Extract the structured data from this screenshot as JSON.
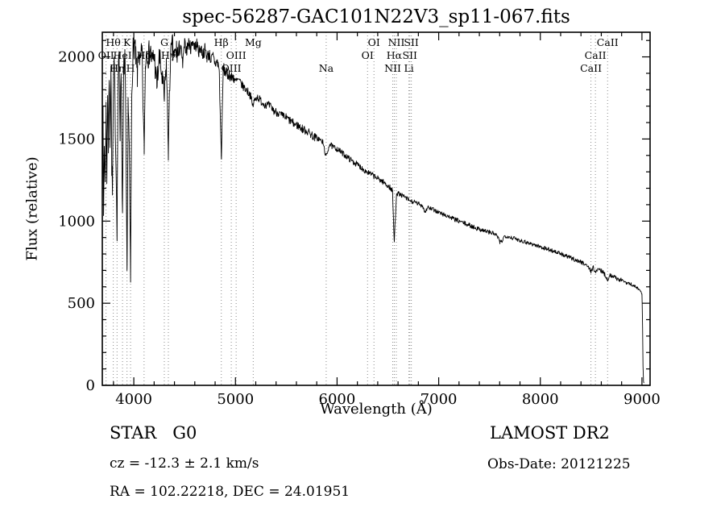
{
  "chart_data": {
    "type": "line",
    "title": "spec-56287-GAC101N22V3_sp11-067.fits",
    "xlabel": "Wavelength (Å)",
    "ylabel": "Flux (relative)",
    "xlim": [
      3690,
      9080
    ],
    "ylim": [
      0,
      2150
    ],
    "xticks": [
      4000,
      5000,
      6000,
      7000,
      8000,
      9000
    ],
    "yticks": [
      0,
      500,
      1000,
      1500,
      2000
    ],
    "x_minor_step": 200,
    "y_minor_step": 100,
    "grid": false,
    "legend": "none",
    "line_color": "#000000",
    "marker_line_color": "#8a8a8a",
    "spectral_lines": [
      {
        "label": "Hθ",
        "wavelength": 3798,
        "row": 1
      },
      {
        "label": "K",
        "wavelength": 3933,
        "row": 1
      },
      {
        "label": "G",
        "wavelength": 4300,
        "row": 1
      },
      {
        "label": "Hβ",
        "wavelength": 4861,
        "row": 1
      },
      {
        "label": "Mg",
        "wavelength": 5175,
        "row": 1
      },
      {
        "label": "OI",
        "wavelength": 6363,
        "row": 1
      },
      {
        "label": "NII",
        "wavelength": 6583,
        "row": 1
      },
      {
        "label": "SII",
        "wavelength": 6731,
        "row": 1
      },
      {
        "label": "CaII",
        "wavelength": 8662,
        "row": 1
      },
      {
        "label": "OII",
        "wavelength": 3727,
        "row": 2
      },
      {
        "label": "HeI",
        "wavelength": 3889,
        "row": 2
      },
      {
        "label": "Hδ",
        "wavelength": 4101,
        "row": 2
      },
      {
        "label": "Hγ",
        "wavelength": 4340,
        "row": 2
      },
      {
        "label": "OIII",
        "wavelength": 5007,
        "row": 2
      },
      {
        "label": "OI",
        "wavelength": 6300,
        "row": 2
      },
      {
        "label": "Hα",
        "wavelength": 6563,
        "row": 2
      },
      {
        "label": "SII",
        "wavelength": 6716,
        "row": 2
      },
      {
        "label": "CaII",
        "wavelength": 8542,
        "row": 2
      },
      {
        "label": "Hη",
        "wavelength": 3835,
        "row": 3
      },
      {
        "label": "H",
        "wavelength": 3968,
        "row": 3
      },
      {
        "label": "OIII",
        "wavelength": 4959,
        "row": 3
      },
      {
        "label": "Na",
        "wavelength": 5893,
        "row": 3
      },
      {
        "label": "NII",
        "wavelength": 6548,
        "row": 3
      },
      {
        "label": "Li",
        "wavelength": 6707,
        "row": 3
      },
      {
        "label": "CaII",
        "wavelength": 8498,
        "row": 3
      }
    ],
    "anchors": [
      [
        3690,
        1150
      ],
      [
        3697,
        1620
      ],
      [
        3703,
        1050
      ],
      [
        3710,
        1500
      ],
      [
        3718,
        1200
      ],
      [
        3727,
        1680
      ],
      [
        3734,
        1280
      ],
      [
        3742,
        1800
      ],
      [
        3750,
        1450
      ],
      [
        3758,
        1900
      ],
      [
        3766,
        1500
      ],
      [
        3775,
        1980
      ],
      [
        3783,
        1350
      ],
      [
        3790,
        1150
      ],
      [
        3798,
        1700
      ],
      [
        3806,
        1980
      ],
      [
        3814,
        1750
      ],
      [
        3822,
        1450
      ],
      [
        3835,
        950
      ],
      [
        3845,
        1850
      ],
      [
        3855,
        2000
      ],
      [
        3865,
        1550
      ],
      [
        3875,
        1950
      ],
      [
        3889,
        1020
      ],
      [
        3900,
        1900
      ],
      [
        3912,
        2020
      ],
      [
        3922,
        1500
      ],
      [
        3933,
        620
      ],
      [
        3944,
        1750
      ],
      [
        3955,
        1450
      ],
      [
        3968,
        640
      ],
      [
        3980,
        1800
      ],
      [
        3993,
        2040
      ],
      [
        4005,
        2080
      ],
      [
        4020,
        1980
      ],
      [
        4035,
        1880
      ],
      [
        4050,
        2060
      ],
      [
        4065,
        1950
      ],
      [
        4080,
        2030
      ],
      [
        4101,
        1420
      ],
      [
        4115,
        1980
      ],
      [
        4130,
        2060
      ],
      [
        4145,
        2000
      ],
      [
        4160,
        2050
      ],
      [
        4180,
        1970
      ],
      [
        4200,
        2010
      ],
      [
        4227,
        1820
      ],
      [
        4250,
        1990
      ],
      [
        4270,
        1920
      ],
      [
        4300,
        1740
      ],
      [
        4320,
        1960
      ],
      [
        4340,
        1440
      ],
      [
        4360,
        1990
      ],
      [
        4380,
        2060
      ],
      [
        4400,
        2000
      ],
      [
        4420,
        2040
      ],
      [
        4440,
        2000
      ],
      [
        4460,
        2070
      ],
      [
        4481,
        1950
      ],
      [
        4500,
        2080
      ],
      [
        4520,
        2040
      ],
      [
        4540,
        2090
      ],
      [
        4560,
        2050
      ],
      [
        4580,
        2100
      ],
      [
        4600,
        2060
      ],
      [
        4620,
        2080
      ],
      [
        4640,
        2030
      ],
      [
        4660,
        2060
      ],
      [
        4680,
        2010
      ],
      [
        4700,
        2050
      ],
      [
        4720,
        2000
      ],
      [
        4740,
        2020
      ],
      [
        4760,
        1980
      ],
      [
        4780,
        2000
      ],
      [
        4800,
        1960
      ],
      [
        4820,
        1970
      ],
      [
        4840,
        1930
      ],
      [
        4861,
        1380
      ],
      [
        4880,
        1930
      ],
      [
        4900,
        1910
      ],
      [
        4920,
        1890
      ],
      [
        4940,
        1900
      ],
      [
        4960,
        1870
      ],
      [
        4980,
        1880
      ],
      [
        5000,
        1850
      ],
      [
        5030,
        1860
      ],
      [
        5060,
        1830
      ],
      [
        5090,
        1810
      ],
      [
        5120,
        1790
      ],
      [
        5145,
        1770
      ],
      [
        5170,
        1700
      ],
      [
        5185,
        1730
      ],
      [
        5210,
        1760
      ],
      [
        5240,
        1740
      ],
      [
        5270,
        1720
      ],
      [
        5300,
        1710
      ],
      [
        5340,
        1700
      ],
      [
        5380,
        1670
      ],
      [
        5420,
        1660
      ],
      [
        5460,
        1640
      ],
      [
        5500,
        1630
      ],
      [
        5540,
        1610
      ],
      [
        5580,
        1590
      ],
      [
        5620,
        1580
      ],
      [
        5660,
        1560
      ],
      [
        5700,
        1550
      ],
      [
        5740,
        1530
      ],
      [
        5780,
        1510
      ],
      [
        5820,
        1500
      ],
      [
        5860,
        1480
      ],
      [
        5893,
        1390
      ],
      [
        5925,
        1470
      ],
      [
        5960,
        1450
      ],
      [
        6000,
        1440
      ],
      [
        6040,
        1420
      ],
      [
        6080,
        1400
      ],
      [
        6120,
        1380
      ],
      [
        6160,
        1360
      ],
      [
        6200,
        1345
      ],
      [
        6240,
        1325
      ],
      [
        6280,
        1305
      ],
      [
        6320,
        1290
      ],
      [
        6360,
        1275
      ],
      [
        6400,
        1260
      ],
      [
        6440,
        1245
      ],
      [
        6480,
        1225
      ],
      [
        6520,
        1205
      ],
      [
        6545,
        1185
      ],
      [
        6563,
        870
      ],
      [
        6585,
        1175
      ],
      [
        6610,
        1165
      ],
      [
        6640,
        1155
      ],
      [
        6670,
        1145
      ],
      [
        6700,
        1130
      ],
      [
        6730,
        1120
      ],
      [
        6760,
        1115
      ],
      [
        6800,
        1105
      ],
      [
        6840,
        1095
      ],
      [
        6867,
        1055
      ],
      [
        6890,
        1085
      ],
      [
        6920,
        1075
      ],
      [
        6950,
        1068
      ],
      [
        6980,
        1060
      ],
      [
        7010,
        1050
      ],
      [
        7040,
        1042
      ],
      [
        7070,
        1035
      ],
      [
        7100,
        1028
      ],
      [
        7140,
        1015
      ],
      [
        7180,
        1005
      ],
      [
        7220,
        995
      ],
      [
        7260,
        985
      ],
      [
        7300,
        975
      ],
      [
        7340,
        965
      ],
      [
        7380,
        955
      ],
      [
        7420,
        948
      ],
      [
        7460,
        940
      ],
      [
        7500,
        932
      ],
      [
        7540,
        925
      ],
      [
        7580,
        905
      ],
      [
        7600,
        870
      ],
      [
        7625,
        880
      ],
      [
        7650,
        912
      ],
      [
        7690,
        905
      ],
      [
        7730,
        897
      ],
      [
        7770,
        890
      ],
      [
        7810,
        882
      ],
      [
        7850,
        874
      ],
      [
        7890,
        866
      ],
      [
        7930,
        858
      ],
      [
        7970,
        850
      ],
      [
        8010,
        842
      ],
      [
        8050,
        834
      ],
      [
        8090,
        826
      ],
      [
        8130,
        818
      ],
      [
        8170,
        808
      ],
      [
        8210,
        798
      ],
      [
        8250,
        788
      ],
      [
        8290,
        778
      ],
      [
        8330,
        768
      ],
      [
        8370,
        758
      ],
      [
        8410,
        748
      ],
      [
        8450,
        738
      ],
      [
        8498,
        695
      ],
      [
        8520,
        722
      ],
      [
        8542,
        682
      ],
      [
        8565,
        712
      ],
      [
        8590,
        700
      ],
      [
        8620,
        690
      ],
      [
        8662,
        645
      ],
      [
        8690,
        672
      ],
      [
        8720,
        662
      ],
      [
        8750,
        652
      ],
      [
        8790,
        642
      ],
      [
        8830,
        632
      ],
      [
        8870,
        622
      ],
      [
        8910,
        610
      ],
      [
        8950,
        595
      ],
      [
        8985,
        575
      ],
      [
        9000,
        555
      ],
      [
        9006,
        350
      ],
      [
        9010,
        120
      ],
      [
        9015,
        25
      ],
      [
        9020,
        15
      ]
    ],
    "noise_regions": [
      {
        "from": 3690,
        "to": 4450,
        "amp": 85
      },
      {
        "from": 4450,
        "to": 5000,
        "amp": 38
      },
      {
        "from": 5000,
        "to": 5800,
        "amp": 26
      },
      {
        "from": 5800,
        "to": 6600,
        "amp": 18
      },
      {
        "from": 6600,
        "to": 7600,
        "amp": 14
      },
      {
        "from": 7600,
        "to": 8900,
        "amp": 13
      },
      {
        "from": 8900,
        "to": 9025,
        "amp": 8
      }
    ],
    "noise_seed": 7,
    "sample_step": 4
  },
  "annotations": {
    "class_label": "STAR   G0",
    "survey": "LAMOST DR2",
    "cz": "cz = -12.3 ± 2.1 km/s",
    "obs_date": "Obs-Date: 20121225",
    "coords": "RA = 102.22218, DEC = 24.01951"
  }
}
